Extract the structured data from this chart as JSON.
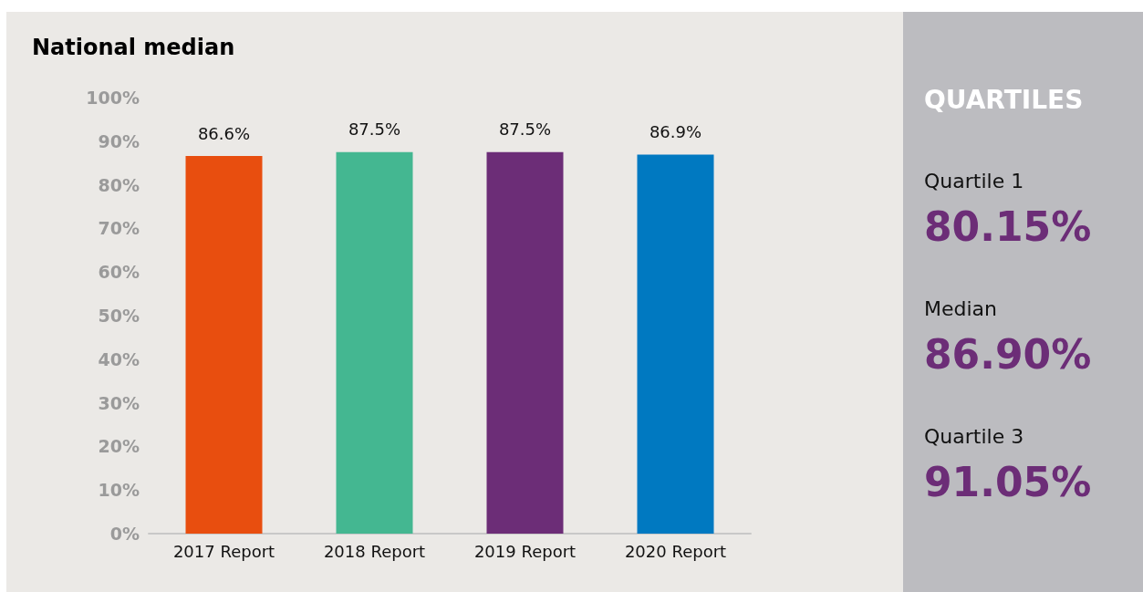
{
  "chart_data": [
    {
      "type": "bar",
      "title": "National median",
      "categories": [
        "2017 Report",
        "2018 Report",
        "2019 Report",
        "2020 Report"
      ],
      "values": [
        86.6,
        87.5,
        87.5,
        86.9
      ],
      "colors": [
        "#e84e0f",
        "#44b791",
        "#6c2d77",
        "#0079c1"
      ],
      "value_labels": [
        "86.6%",
        "87.5%",
        "87.5%",
        "86.9%"
      ],
      "ylim": [
        0,
        100
      ],
      "yticks": [
        {
          "value": 0,
          "label": "0%"
        },
        {
          "value": 10,
          "label": "10%"
        },
        {
          "value": 20,
          "label": "20%"
        },
        {
          "value": 30,
          "label": "30%"
        },
        {
          "value": 40,
          "label": "40%"
        },
        {
          "value": 50,
          "label": "50%"
        },
        {
          "value": 60,
          "label": "60%"
        },
        {
          "value": 70,
          "label": "70%"
        },
        {
          "value": 80,
          "label": "80%"
        },
        {
          "value": 90,
          "label": "90%"
        },
        {
          "value": 100,
          "label": "100%"
        }
      ],
      "grid": false
    },
    {
      "type": "other",
      "title": "QUARTILES",
      "color": "#6c2d77",
      "annotations": [
        "Quartile 1",
        "80.15%",
        "Median",
        "86.90%",
        "Quartile 3",
        "91.05%"
      ]
    }
  ]
}
